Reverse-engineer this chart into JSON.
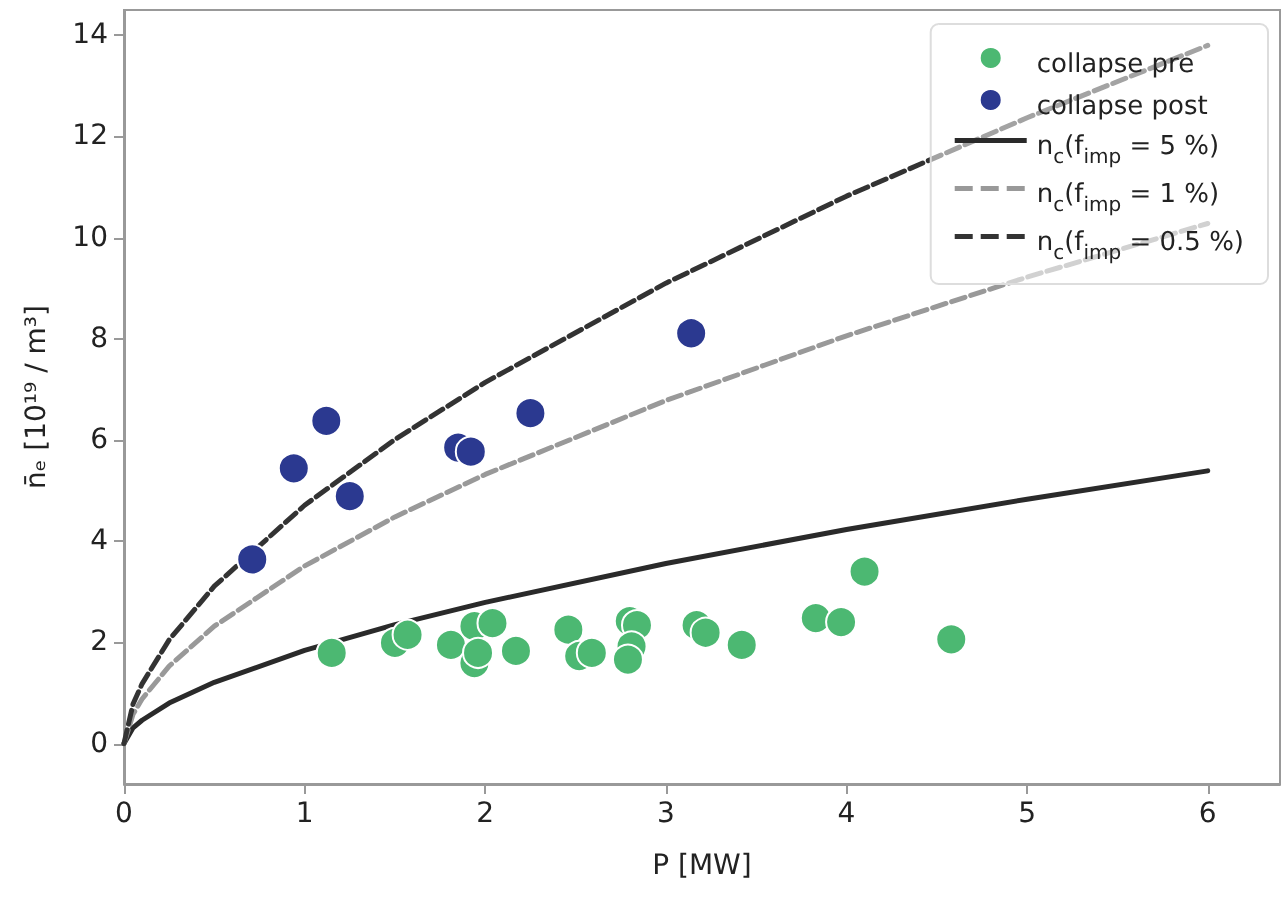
{
  "chart_data": {
    "type": "scatter",
    "xlabel": "P [MW]",
    "ylabel": "n̄ₑ [10¹⁹ / m³]",
    "xlim": [
      0,
      6.4
    ],
    "xticks": [
      0,
      1,
      2,
      3,
      4,
      5,
      6
    ],
    "ylim": [
      -0.8,
      14.5
    ],
    "yticks": [
      0,
      2,
      4,
      6,
      8,
      10,
      12,
      14
    ],
    "grid": false,
    "legend": "top right",
    "series": [
      {
        "name": "collapse pre",
        "type": "scatter",
        "marker": "circle",
        "color": "#4cb872",
        "x": [
          1.15,
          1.5,
          1.57,
          1.81,
          1.94,
          2.04,
          1.94,
          1.96,
          2.17,
          2.46,
          2.52,
          2.59,
          2.8,
          2.84,
          2.81,
          2.79,
          3.17,
          3.22,
          3.42,
          3.83,
          3.97,
          4.1,
          4.58
        ],
        "values": [
          1.79,
          1.99,
          2.15,
          1.95,
          2.32,
          2.38,
          1.59,
          1.79,
          1.83,
          2.25,
          1.73,
          1.79,
          2.42,
          2.34,
          1.92,
          1.66,
          2.34,
          2.19,
          1.95,
          2.48,
          2.4,
          3.4,
          2.06
        ]
      },
      {
        "name": "collapse post",
        "type": "scatter",
        "marker": "circle",
        "color": "#2b3990",
        "x": [
          0.71,
          0.94,
          1.12,
          1.25,
          1.85,
          1.92,
          2.25,
          3.14
        ],
        "values": [
          3.64,
          5.44,
          6.38,
          4.89,
          5.85,
          5.77,
          6.53,
          8.11
        ]
      },
      {
        "name": "n$_{c}$(f$_{imp}$ = 5 %)",
        "type": "line",
        "marker": "none",
        "line_style": "solid",
        "color": "#2a2a2a",
        "x": [
          0,
          0.05,
          0.1,
          0.25,
          0.5,
          1,
          1.5,
          2,
          3,
          4,
          5,
          6
        ],
        "values": [
          0,
          0.31,
          0.46,
          0.8,
          1.21,
          1.84,
          2.35,
          2.79,
          3.56,
          4.23,
          4.83,
          5.39
        ]
      },
      {
        "name": "n$_{c}$(f$_{imp}$ = 1 %)",
        "type": "line",
        "marker": "none",
        "line_style": "dashed",
        "color": "#999999",
        "x": [
          0,
          0.05,
          0.1,
          0.25,
          0.5,
          1,
          1.5,
          2,
          3,
          4,
          5,
          6
        ],
        "values": [
          0,
          0.58,
          0.88,
          1.53,
          2.32,
          3.51,
          4.48,
          5.32,
          6.78,
          8.06,
          9.22,
          10.28
        ]
      },
      {
        "name": "n$_{c}$(f$_{imp}$ = 0.5 %)",
        "type": "line",
        "marker": "none",
        "line_style": "dashed",
        "color": "#333333",
        "x": [
          0,
          0.05,
          0.1,
          0.25,
          0.5,
          1,
          1.5,
          2,
          3,
          4,
          5,
          6
        ],
        "values": [
          0,
          0.78,
          1.18,
          2.05,
          3.11,
          4.71,
          6.01,
          7.14,
          9.1,
          10.82,
          12.37,
          13.8
        ]
      }
    ]
  }
}
